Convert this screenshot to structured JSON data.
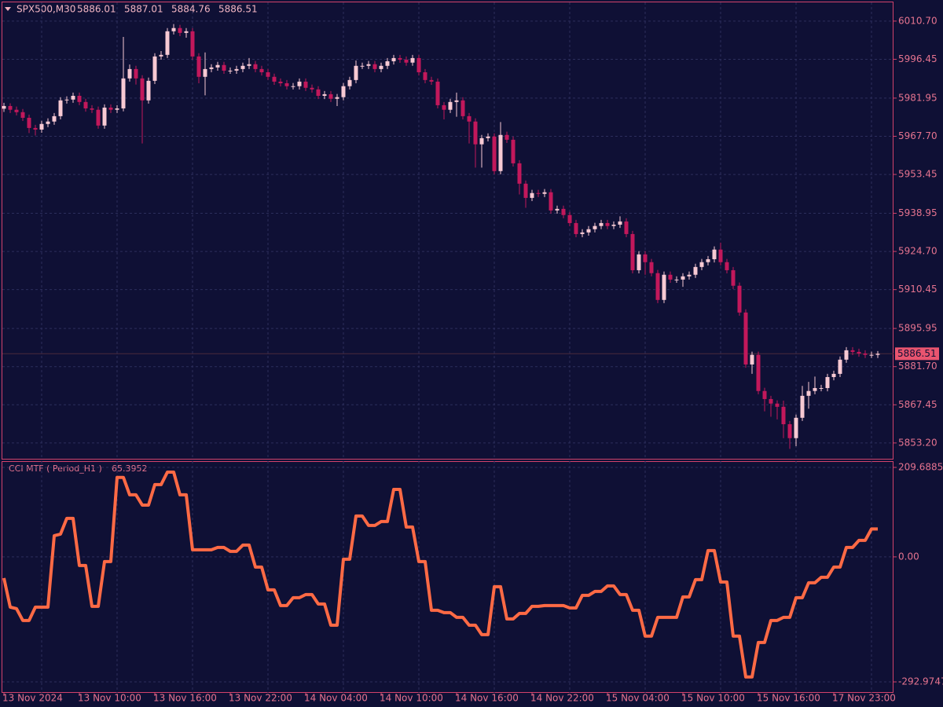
{
  "chart_data": [
    {
      "type": "candlestick",
      "symbol": "SPX500,M30",
      "header_values": [
        5886.01,
        5887.01,
        5884.76,
        5886.51
      ],
      "last_price": 5886.51,
      "up_color": "#f7c9d3",
      "down_color": "#c2185b",
      "grid": true,
      "categories": [
        "13 Nov 2024",
        null,
        null,
        null,
        null,
        null,
        null,
        null,
        null,
        null,
        null,
        null,
        "13 Nov 10:00",
        null,
        null,
        null,
        null,
        null,
        null,
        null,
        null,
        null,
        null,
        null,
        "13 Nov 16:00",
        null,
        null,
        null,
        null,
        null,
        null,
        null,
        null,
        null,
        null,
        null,
        "13 Nov 22:00",
        null,
        null,
        null,
        null,
        null,
        null,
        null,
        null,
        null,
        null,
        null,
        "14 Nov 04:00",
        null,
        null,
        null,
        null,
        null,
        null,
        null,
        null,
        null,
        null,
        null,
        "14 Nov 10:00",
        null,
        null,
        null,
        null,
        null,
        null,
        null,
        null,
        null,
        null,
        null,
        "14 Nov 16:00",
        null,
        null,
        null,
        null,
        null,
        null,
        null,
        null,
        null,
        null,
        null,
        "14 Nov 22:00",
        null,
        null,
        null,
        null,
        null,
        null,
        null,
        null,
        null,
        null,
        null,
        "15 Nov 04:00",
        null,
        null,
        null,
        null,
        null,
        null,
        null,
        null,
        null,
        null,
        null,
        "15 Nov 10:00",
        null,
        null,
        null,
        null,
        null,
        null,
        null,
        null,
        null,
        null,
        null,
        "15 Nov 16:00",
        null,
        null,
        null,
        null,
        null,
        null,
        null,
        null,
        null,
        null,
        null,
        "17 Nov 23:00",
        null,
        null,
        null,
        null,
        null,
        null,
        null
      ],
      "open": [
        5978.0,
        5979.0,
        5977.6,
        5976.7,
        5974.6,
        5970.8,
        5970.2,
        5972.3,
        5973.2,
        5975.2,
        5981.1,
        5981.4,
        5982.8,
        5980.5,
        5978.1,
        5977.6,
        5971.7,
        5978.4,
        5977.6,
        5978.1,
        5989.3,
        5992.8,
        5989.3,
        5981.1,
        5988.4,
        5997.5,
        5998.1,
        6006.9,
        6008.1,
        6006.3,
        6006.9,
        5997.5,
        5989.9,
        5992.8,
        5993.4,
        5994.3,
        5992.2,
        5992.2,
        5992.8,
        5994.0,
        5994.6,
        5992.8,
        5991.6,
        5989.9,
        5988.1,
        5987.5,
        5986.4,
        5986.4,
        5988.1,
        5985.8,
        5985.2,
        5982.8,
        5983.4,
        5981.7,
        5982.3,
        5986.4,
        5988.7,
        5994.0,
        5994.0,
        5994.6,
        5992.8,
        5994.0,
        5995.7,
        5996.9,
        5996.3,
        5995.2,
        5996.9,
        5991.6,
        5988.7,
        5988.1,
        5979.3,
        5977.6,
        5980.5,
        5981.1,
        5975.2,
        5973.2,
        5964.7,
        5967.0,
        5967.6,
        5954.7,
        5968.2,
        5966.4,
        5957.6,
        5950.0,
        5944.7,
        5946.5,
        5946.2,
        5946.8,
        5940.0,
        5940.6,
        5938.3,
        5935.3,
        5931.2,
        5931.8,
        5933.0,
        5934.2,
        5935.3,
        5934.2,
        5934.7,
        5935.9,
        5931.2,
        5917.7,
        5923.6,
        5920.7,
        5916.6,
        5906.6,
        5916.0,
        5914.2,
        5914.2,
        5915.4,
        5916.0,
        5918.9,
        5920.7,
        5921.8,
        5925.4,
        5920.7,
        5917.7,
        5911.9,
        5901.9,
        5882.5,
        5886.1,
        5872.6,
        5869.6,
        5867.9,
        5866.7,
        5860.2,
        5855.0,
        5862.6,
        5870.8,
        5872.6,
        5873.7,
        5873.7,
        5877.8,
        5879.0,
        5884.3,
        5887.8,
        5887.2,
        5886.6,
        5886.1,
        5886.1
      ],
      "high": [
        5980.2,
        5980.0,
        5978.8,
        5977.9,
        5975.8,
        5972.0,
        5973.5,
        5974.4,
        5976.4,
        5982.3,
        5982.6,
        5984.0,
        5984.0,
        5981.7,
        5979.3,
        5978.8,
        5979.6,
        5979.6,
        5979.3,
        6004.8,
        5994.5,
        5994.0,
        5990.5,
        5989.6,
        5998.7,
        5999.5,
        6008.1,
        6009.6,
        6009.3,
        6008.1,
        6008.1,
        5998.7,
        5999.0,
        5994.6,
        5995.5,
        5995.5,
        5993.4,
        5994.0,
        5995.2,
        5996.9,
        5995.8,
        5994.0,
        5992.8,
        5991.1,
        5989.3,
        5988.7,
        5987.6,
        5989.3,
        5989.3,
        5987.0,
        5986.4,
        5984.6,
        5984.6,
        5983.5,
        5987.6,
        5989.9,
        5996.0,
        5995.2,
        5995.8,
        5995.8,
        5995.2,
        5996.9,
        5998.1,
        5998.1,
        5997.5,
        5998.1,
        5998.1,
        5992.8,
        5989.9,
        5989.3,
        5980.5,
        5981.7,
        5984.0,
        5982.3,
        5976.4,
        5974.4,
        5968.2,
        5968.8,
        5968.8,
        5973.0,
        5969.4,
        5967.6,
        5958.8,
        5951.2,
        5947.7,
        5947.7,
        5948.0,
        5948.0,
        5941.8,
        5941.8,
        5939.5,
        5936.5,
        5933.0,
        5934.2,
        5935.4,
        5936.5,
        5936.5,
        5935.9,
        5937.8,
        5937.1,
        5932.4,
        5924.8,
        5924.8,
        5921.9,
        5917.8,
        5917.2,
        5917.2,
        5915.4,
        5916.6,
        5917.2,
        5920.1,
        5921.9,
        5923.0,
        5926.6,
        5928.0,
        5921.9,
        5918.9,
        5913.1,
        5903.1,
        5887.3,
        5887.3,
        5873.8,
        5870.8,
        5869.1,
        5869.0,
        5861.4,
        5863.8,
        5874.5,
        5876.0,
        5878.0,
        5874.9,
        5879.0,
        5880.2,
        5885.5,
        5889.0,
        5889.0,
        5888.4,
        5887.8,
        5887.3,
        5887.5
      ],
      "low": [
        5976.8,
        5976.4,
        5975.5,
        5973.4,
        5968.9,
        5968.0,
        5969.0,
        5971.1,
        5972.0,
        5974.0,
        5979.9,
        5980.2,
        5979.3,
        5976.9,
        5976.4,
        5970.5,
        5970.5,
        5976.4,
        5976.4,
        5977.0,
        5988.1,
        5987.0,
        5965.0,
        5979.9,
        5987.2,
        5996.3,
        5996.9,
        6005.7,
        6005.1,
        6004.5,
        5996.3,
        5987.5,
        5983.0,
        5991.6,
        5992.2,
        5991.0,
        5991.0,
        5991.0,
        5991.6,
        5992.8,
        5991.6,
        5990.4,
        5988.7,
        5986.9,
        5986.3,
        5985.2,
        5985.2,
        5985.2,
        5984.6,
        5984.0,
        5981.6,
        5981.6,
        5980.5,
        5979.0,
        5981.1,
        5985.2,
        5987.5,
        5992.8,
        5992.8,
        5991.6,
        5991.6,
        5992.8,
        5994.5,
        5995.1,
        5994.0,
        5994.0,
        5990.4,
        5987.5,
        5986.9,
        5978.1,
        5974.0,
        5976.4,
        5975.0,
        5974.0,
        5965.0,
        5956.0,
        5956.0,
        5965.8,
        5953.5,
        5953.5,
        5965.2,
        5956.4,
        5946.0,
        5941.0,
        5943.5,
        5945.0,
        5945.0,
        5938.8,
        5938.8,
        5937.1,
        5934.1,
        5930.0,
        5930.0,
        5930.6,
        5931.8,
        5933.0,
        5933.0,
        5933.0,
        5933.5,
        5930.0,
        5916.5,
        5916.5,
        5916.0,
        5915.4,
        5905.4,
        5905.4,
        5913.0,
        5913.0,
        5911.5,
        5914.2,
        5914.8,
        5917.7,
        5919.5,
        5920.6,
        5919.5,
        5916.5,
        5910.7,
        5900.7,
        5881.3,
        5879.0,
        5871.4,
        5865.0,
        5863.0,
        5862.0,
        5855.0,
        5851.0,
        5852.0,
        5861.4,
        5866.0,
        5871.4,
        5872.5,
        5872.5,
        5876.6,
        5877.8,
        5883.1,
        5886.0,
        5885.4,
        5884.9,
        5884.9,
        5884.9
      ],
      "close": [
        5979.0,
        5977.6,
        5976.7,
        5974.6,
        5970.8,
        5970.2,
        5972.3,
        5973.2,
        5975.2,
        5981.1,
        5981.4,
        5982.8,
        5980.5,
        5978.1,
        5977.6,
        5971.7,
        5978.4,
        5977.6,
        5978.1,
        5989.3,
        5992.8,
        5989.3,
        5981.1,
        5988.4,
        5997.5,
        5998.1,
        6006.9,
        6008.1,
        6006.3,
        6006.9,
        5997.5,
        5989.9,
        5992.8,
        5993.4,
        5994.3,
        5992.2,
        5992.2,
        5992.8,
        5994.0,
        5994.6,
        5992.8,
        5991.6,
        5989.9,
        5988.1,
        5987.5,
        5986.4,
        5986.4,
        5988.1,
        5985.8,
        5985.2,
        5982.8,
        5983.4,
        5981.7,
        5982.3,
        5986.4,
        5988.7,
        5994.0,
        5994.0,
        5994.6,
        5992.8,
        5994.0,
        5995.7,
        5996.9,
        5996.3,
        5995.2,
        5996.9,
        5991.6,
        5988.7,
        5988.1,
        5979.3,
        5977.6,
        5980.5,
        5981.1,
        5975.2,
        5973.2,
        5964.7,
        5967.0,
        5967.6,
        5954.7,
        5968.2,
        5966.4,
        5957.6,
        5950.0,
        5944.7,
        5946.5,
        5946.2,
        5946.8,
        5940.0,
        5940.6,
        5938.3,
        5935.3,
        5931.2,
        5931.8,
        5933.0,
        5934.2,
        5935.3,
        5934.2,
        5934.7,
        5935.9,
        5931.2,
        5917.7,
        5923.6,
        5920.7,
        5916.6,
        5906.6,
        5916.0,
        5914.2,
        5914.2,
        5915.4,
        5916.0,
        5918.9,
        5920.7,
        5921.8,
        5925.4,
        5920.7,
        5917.7,
        5911.9,
        5901.9,
        5882.5,
        5886.1,
        5872.6,
        5869.6,
        5867.9,
        5866.7,
        5860.2,
        5855.0,
        5862.6,
        5870.8,
        5872.6,
        5873.7,
        5873.7,
        5877.8,
        5879.0,
        5884.3,
        5887.8,
        5887.2,
        5886.6,
        5886.1,
        5886.1,
        5886.51
      ],
      "ylim": [
        5847.3,
        6017.7
      ],
      "yticks": [
        {
          "value": 6010.7,
          "label": "6010.70"
        },
        5996.45,
        5981.95,
        {
          "value": 5967.7,
          "label": "5967.70"
        },
        5953.45,
        5938.95,
        {
          "value": 5924.7,
          "label": "5924.70"
        },
        5910.45,
        5895.95,
        {
          "value": 5881.7,
          "label": "5881.70"
        },
        5867.45,
        {
          "value": 5853.2,
          "label": "5853.20"
        }
      ]
    },
    {
      "type": "line",
      "title": "CCI MTF ( Period_H1 )",
      "indicator_value": 65.3952,
      "grid": true,
      "series": [
        {
          "name": "CCI MTF",
          "color": "#ff6a45",
          "values": [
            -49.7,
            -117.8,
            -121.4,
            -149.0,
            -149.0,
            -117.8,
            -117.8,
            -117.8,
            49.7,
            53.4,
            90.2,
            90.2,
            -20.2,
            -20.2,
            -115.9,
            -115.9,
            -11.0,
            -11.0,
            186.3,
            186.3,
            145.4,
            145.4,
            121.4,
            121.4,
            169.3,
            169.3,
            198.7,
            198.7,
            145.4,
            145.4,
            16.6,
            16.6,
            16.6,
            16.6,
            22.1,
            22.1,
            12.9,
            12.9,
            27.6,
            27.6,
            -23.9,
            -23.9,
            -77.3,
            -77.3,
            -114.1,
            -114.1,
            -95.7,
            -95.7,
            -88.3,
            -88.3,
            -110.4,
            -110.4,
            -160.1,
            -160.1,
            -5.5,
            -5.5,
            95.7,
            95.7,
            73.6,
            73.6,
            82.8,
            82.8,
            158.2,
            158.2,
            69.9,
            69.9,
            -11.0,
            -11.0,
            -125.1,
            -125.1,
            -130.6,
            -130.6,
            -141.7,
            -141.7,
            -160.1,
            -160.1,
            -182.2,
            -182.2,
            -69.9,
            -69.9,
            -145.4,
            -145.4,
            -132.5,
            -132.5,
            -115.9,
            -115.9,
            -114.1,
            -114.1,
            -114.1,
            -114.1,
            -119.6,
            -119.6,
            -90.2,
            -90.2,
            -81.0,
            -81.0,
            -68.1,
            -68.1,
            -88.3,
            -88.3,
            -125.1,
            -125.1,
            -185.8,
            -185.8,
            -141.7,
            -141.7,
            -141.7,
            -141.7,
            -93.8,
            -93.8,
            -53.4,
            -53.4,
            14.7,
            14.7,
            -58.9,
            -58.9,
            -185.8,
            -185.8,
            -281.5,
            -281.5,
            -200.6,
            -200.6,
            -149.0,
            -149.0,
            -141.7,
            -141.7,
            -95.7,
            -95.7,
            -60.7,
            -60.7,
            -47.8,
            -47.8,
            -23.9,
            -23.9,
            22.1,
            22.1,
            38.6,
            38.6,
            65.3952,
            65.3952
          ]
        }
      ],
      "ylim": [
        -318.7,
        224.4
      ],
      "yticks": [
        209.6885,
        {
          "value": 0,
          "label": "0.00"
        },
        -292.9747
      ]
    }
  ]
}
